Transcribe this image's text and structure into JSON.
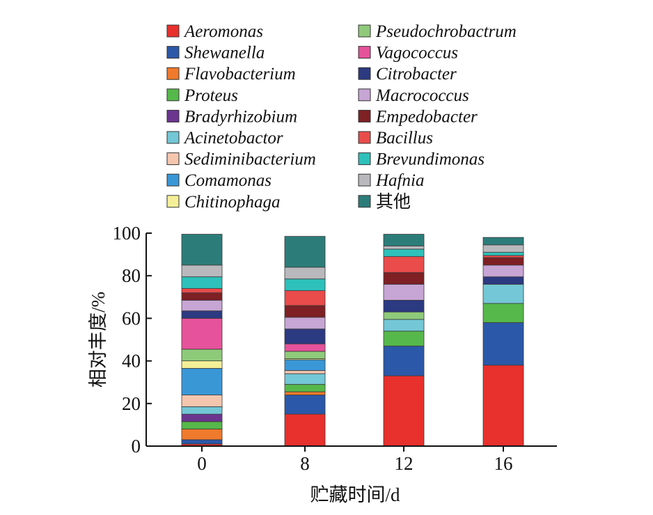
{
  "chart_data": {
    "type": "bar",
    "stacked": true,
    "xlabel": "贮藏时间/d",
    "ylabel": "相对丰度/%",
    "ylim": [
      0,
      100
    ],
    "yticks": [
      0,
      20,
      40,
      60,
      80,
      100
    ],
    "categories": [
      "0",
      "8",
      "12",
      "16"
    ],
    "grid": false,
    "legend_placement": "top",
    "series": [
      {
        "name": "Aeromonas",
        "color": "#e8302c",
        "values": [
          1,
          15,
          33,
          38
        ]
      },
      {
        "name": "Shewanella",
        "color": "#2b58a8",
        "values": [
          2,
          9,
          14,
          20
        ]
      },
      {
        "name": "Flavobacterium",
        "color": "#f07a2c",
        "values": [
          5,
          1.5,
          0,
          0
        ]
      },
      {
        "name": "Proteus",
        "color": "#56b84a",
        "values": [
          3.5,
          3.5,
          7,
          9
        ]
      },
      {
        "name": "Bradyrhizobium",
        "color": "#6b3590",
        "values": [
          3.5,
          0,
          0,
          0
        ]
      },
      {
        "name": "Acinetobactor",
        "color": "#74c7d6",
        "values": [
          3.5,
          5,
          5.5,
          9
        ]
      },
      {
        "name": "Sediminibacterium",
        "color": "#f4c6ae",
        "values": [
          5.5,
          1.5,
          0,
          0
        ]
      },
      {
        "name": "Comamonas",
        "color": "#3a97d6",
        "values": [
          12.5,
          5,
          0,
          0
        ]
      },
      {
        "name": "Chitinophaga",
        "color": "#f4ef97",
        "values": [
          3.5,
          0.5,
          0,
          0
        ]
      },
      {
        "name": "Pseudochrobactrum",
        "color": "#8fca7a",
        "values": [
          5.5,
          3.5,
          3.5,
          0
        ]
      },
      {
        "name": "Vagococcus",
        "color": "#e6529b",
        "values": [
          14.5,
          3.5,
          0,
          0
        ]
      },
      {
        "name": "Citrobacter",
        "color": "#2c3a82",
        "values": [
          3.5,
          7,
          5.5,
          3.5
        ]
      },
      {
        "name": "Macrococcus",
        "color": "#c7a5d4",
        "values": [
          5,
          5.5,
          7.5,
          5.5
        ]
      },
      {
        "name": "Empedobacter",
        "color": "#7e2024",
        "values": [
          3.5,
          5.5,
          5.5,
          3.5
        ]
      },
      {
        "name": "Bacillus",
        "color": "#ea4b4b",
        "values": [
          2,
          7,
          7.5,
          1
        ]
      },
      {
        "name": "Brevundimonas",
        "color": "#2ec1bb",
        "values": [
          5.5,
          5.5,
          3.5,
          1.5
        ]
      },
      {
        "name": "Hafnia",
        "color": "#b9b9bd",
        "values": [
          5.5,
          5.5,
          1.5,
          3.5
        ]
      },
      {
        "name": "其他",
        "color": "#2c7d7a",
        "values": [
          14.5,
          14.5,
          5.5,
          3.5
        ]
      }
    ]
  }
}
